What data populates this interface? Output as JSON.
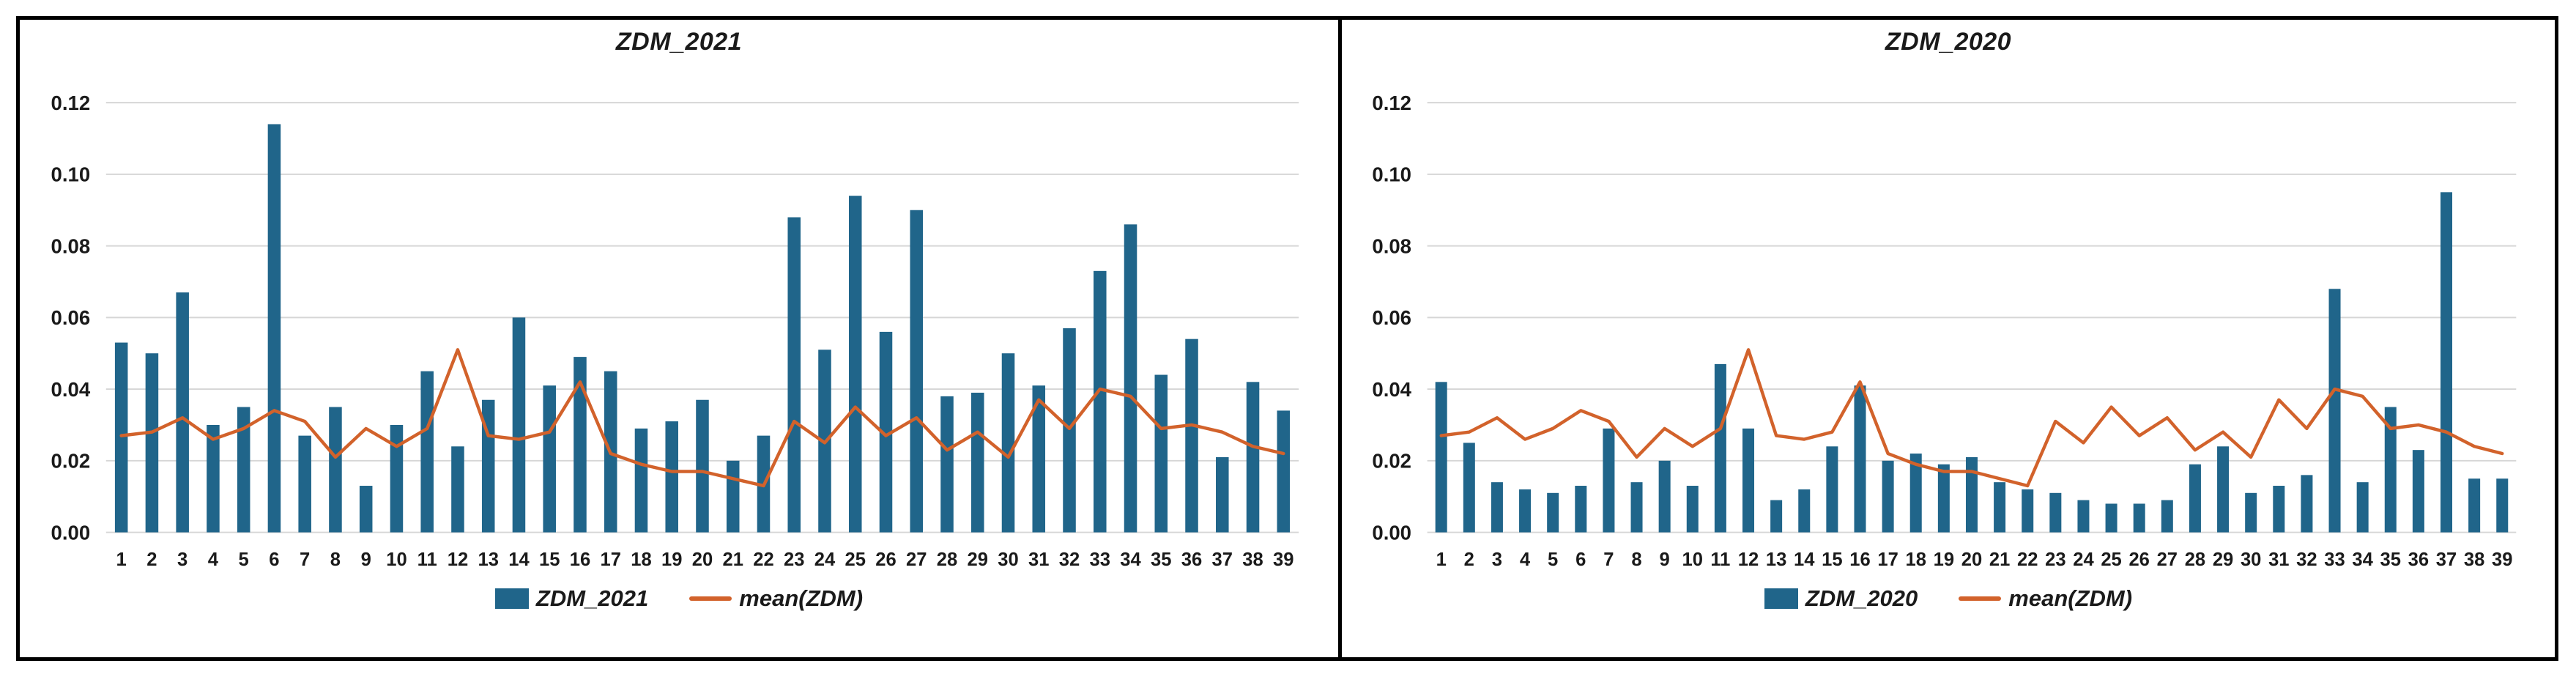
{
  "figure": {
    "background": "#FFFFFF",
    "border_color": "#000000"
  },
  "colors": {
    "bar": "#20658A",
    "line": "#D2622B",
    "grid": "#D6D6D6",
    "text": "#1A1A1A"
  },
  "chart_data": [
    {
      "type": "bar",
      "title": "ZDM_2021",
      "xlabel": "",
      "ylabel": "",
      "ylim": [
        0,
        0.12
      ],
      "yticks": [
        "0.00",
        "0.02",
        "0.04",
        "0.06",
        "0.08",
        "0.10",
        "0.12"
      ],
      "grid": true,
      "legend_position": "bottom",
      "categories": [
        "1",
        "2",
        "3",
        "4",
        "5",
        "6",
        "7",
        "8",
        "9",
        "10",
        "11",
        "12",
        "13",
        "14",
        "15",
        "16",
        "17",
        "18",
        "19",
        "20",
        "21",
        "22",
        "23",
        "24",
        "25",
        "26",
        "27",
        "28",
        "29",
        "30",
        "31",
        "32",
        "33",
        "34",
        "35",
        "36",
        "37",
        "38",
        "39"
      ],
      "series": [
        {
          "name": "ZDM_2021",
          "kind": "bar",
          "values": [
            0.053,
            0.05,
            0.067,
            0.03,
            0.035,
            0.114,
            0.027,
            0.035,
            0.013,
            0.03,
            0.045,
            0.024,
            0.037,
            0.06,
            0.041,
            0.049,
            0.045,
            0.029,
            0.031,
            0.037,
            0.02,
            0.027,
            0.088,
            0.051,
            0.094,
            0.056,
            0.09,
            0.038,
            0.039,
            0.05,
            0.041,
            0.057,
            0.073,
            0.086,
            0.044,
            0.054,
            0.021,
            0.042,
            0.034
          ]
        },
        {
          "name": "mean(ZDM)",
          "kind": "line",
          "values": [
            0.027,
            0.028,
            0.032,
            0.026,
            0.029,
            0.034,
            0.031,
            0.021,
            0.029,
            0.024,
            0.029,
            0.051,
            0.027,
            0.026,
            0.028,
            0.042,
            0.022,
            0.019,
            0.017,
            0.017,
            0.015,
            0.013,
            0.031,
            0.025,
            0.035,
            0.027,
            0.032,
            0.023,
            0.028,
            0.021,
            0.037,
            0.029,
            0.04,
            0.038,
            0.029,
            0.03,
            0.028,
            0.024,
            0.022
          ]
        }
      ]
    },
    {
      "type": "bar",
      "title": "ZDM_2020",
      "xlabel": "",
      "ylabel": "",
      "ylim": [
        0,
        0.12
      ],
      "yticks": [
        "0.00",
        "0.02",
        "0.04",
        "0.06",
        "0.08",
        "0.10",
        "0.12"
      ],
      "grid": true,
      "legend_position": "bottom",
      "categories": [
        "1",
        "2",
        "3",
        "4",
        "5",
        "6",
        "7",
        "8",
        "9",
        "10",
        "11",
        "12",
        "13",
        "14",
        "15",
        "16",
        "17",
        "18",
        "19",
        "20",
        "21",
        "22",
        "23",
        "24",
        "25",
        "26",
        "27",
        "28",
        "29",
        "30",
        "31",
        "32",
        "33",
        "34",
        "35",
        "36",
        "37",
        "38",
        "39"
      ],
      "series": [
        {
          "name": "ZDM_2020",
          "kind": "bar",
          "values": [
            0.042,
            0.025,
            0.014,
            0.012,
            0.011,
            0.013,
            0.029,
            0.014,
            0.02,
            0.013,
            0.047,
            0.029,
            0.009,
            0.012,
            0.024,
            0.041,
            0.02,
            0.022,
            0.019,
            0.021,
            0.014,
            0.012,
            0.011,
            0.009,
            0.008,
            0.008,
            0.009,
            0.019,
            0.024,
            0.011,
            0.013,
            0.016,
            0.068,
            0.014,
            0.035,
            0.023,
            0.095,
            0.015,
            0.015
          ]
        },
        {
          "name": "mean(ZDM)",
          "kind": "line",
          "values": [
            0.027,
            0.028,
            0.032,
            0.026,
            0.029,
            0.034,
            0.031,
            0.021,
            0.029,
            0.024,
            0.029,
            0.051,
            0.027,
            0.026,
            0.028,
            0.042,
            0.022,
            0.019,
            0.017,
            0.017,
            0.015,
            0.013,
            0.031,
            0.025,
            0.035,
            0.027,
            0.032,
            0.023,
            0.028,
            0.021,
            0.037,
            0.029,
            0.04,
            0.038,
            0.029,
            0.03,
            0.028,
            0.024,
            0.022
          ]
        }
      ]
    }
  ]
}
